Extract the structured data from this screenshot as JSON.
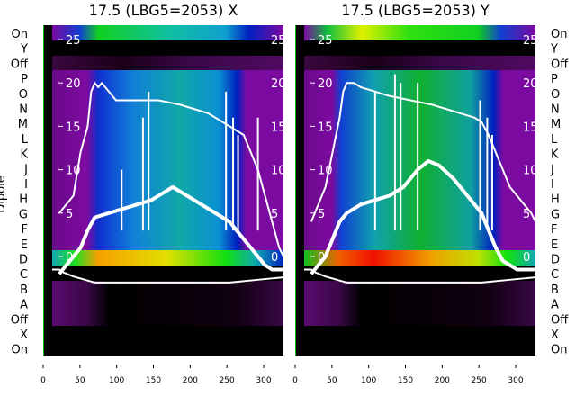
{
  "chart_data": [
    {
      "type": "heatmap",
      "title": "17.5 (LBG5=2053) X",
      "ylabel": "Dipole",
      "row_labels": [
        "On",
        "Y",
        "Off",
        "P",
        "O",
        "N",
        "M",
        "L",
        "K",
        "J",
        "I",
        "H",
        "G",
        "F",
        "E",
        "D",
        "C",
        "B",
        "A",
        "Off",
        "X",
        "On"
      ],
      "xticks": [
        0,
        50,
        100,
        150,
        200,
        250,
        300
      ],
      "xlim": [
        0,
        326
      ],
      "inner_yticks": [
        0,
        5,
        10,
        15,
        20,
        25
      ],
      "inner_ylim": [
        -11.5,
        26.5
      ],
      "series": [
        {
          "name": "upper",
          "x": [
            10,
            20,
            30,
            40,
            50,
            55,
            60,
            65,
            70,
            80,
            90,
            100,
            120,
            150,
            180,
            200,
            220,
            240,
            250,
            260,
            270,
            280,
            290,
            300,
            310,
            320,
            326
          ],
          "y": [
            5,
            6,
            7,
            12,
            15,
            19,
            20,
            19.5,
            20,
            19,
            18,
            18,
            18,
            18,
            17.5,
            17,
            16.5,
            15.5,
            15,
            14.5,
            14,
            12,
            10,
            7,
            4,
            1,
            0
          ]
        },
        {
          "name": "lower",
          "x": [
            10,
            20,
            30,
            40,
            50,
            60,
            80,
            100,
            120,
            140,
            160,
            170,
            180,
            200,
            220,
            240,
            250,
            260,
            270,
            280,
            290,
            300,
            310,
            326
          ],
          "y": [
            -2,
            -1,
            0,
            1,
            3,
            4.5,
            5,
            5.5,
            6,
            6.5,
            7.5,
            8,
            7.5,
            6.5,
            5.5,
            4.5,
            4,
            3,
            2,
            1,
            0,
            -1,
            -1.5,
            -1.5
          ]
        },
        {
          "name": "baseline",
          "x": [
            0,
            10,
            15,
            30,
            60,
            100,
            200,
            250,
            300,
            326
          ],
          "y": [
            -1.5,
            -1.5,
            -1.8,
            -2.3,
            -3,
            -3,
            -3,
            -3,
            -2.6,
            -2.4
          ]
        }
      ],
      "spikes": [
        {
          "x": 98,
          "top": 10
        },
        {
          "x": 128,
          "top": 16
        },
        {
          "x": 136,
          "top": 19
        },
        {
          "x": 245,
          "top": 19
        },
        {
          "x": 255,
          "top": 16
        },
        {
          "x": 262,
          "top": 14
        },
        {
          "x": 290,
          "top": 16
        }
      ]
    },
    {
      "type": "heatmap",
      "title": "17.5 (LBG5=2053) Y",
      "row_labels": [
        "On",
        "Y",
        "Off",
        "P",
        "O",
        "N",
        "M",
        "L",
        "K",
        "J",
        "I",
        "H",
        "G",
        "F",
        "E",
        "D",
        "C",
        "B",
        "A",
        "Off",
        "X",
        "On"
      ],
      "xticks": [
        0,
        50,
        100,
        150,
        200,
        250,
        300
      ],
      "xlim": [
        0,
        326
      ],
      "inner_yticks": [
        0,
        5,
        10,
        15,
        20,
        25
      ],
      "inner_ylim": [
        -11.5,
        26.5
      ],
      "series": [
        {
          "name": "upper",
          "x": [
            10,
            20,
            30,
            40,
            50,
            55,
            60,
            70,
            80,
            100,
            120,
            150,
            180,
            200,
            220,
            240,
            250,
            260,
            270,
            280,
            290,
            300,
            310,
            320,
            326
          ],
          "y": [
            4,
            6,
            8,
            12,
            16,
            19,
            20,
            20,
            19.5,
            19,
            18.5,
            18,
            17.5,
            17,
            16.5,
            16,
            15.5,
            14,
            12,
            10,
            8,
            7,
            6,
            5,
            4
          ]
        },
        {
          "name": "lower",
          "x": [
            10,
            20,
            30,
            40,
            50,
            60,
            80,
            100,
            120,
            140,
            160,
            175,
            190,
            210,
            230,
            250,
            260,
            270,
            280,
            290,
            300,
            326
          ],
          "y": [
            -2,
            -1,
            0,
            2,
            4,
            5,
            6,
            6.5,
            7,
            8,
            10,
            11,
            10.5,
            9,
            7,
            5,
            3,
            1,
            -0.5,
            -1,
            -1.5,
            -1.5
          ]
        },
        {
          "name": "baseline",
          "x": [
            0,
            10,
            15,
            30,
            60,
            100,
            200,
            250,
            300,
            326
          ],
          "y": [
            -1.5,
            -1.5,
            -1.8,
            -2.3,
            -3,
            -3,
            -3,
            -3,
            -2.6,
            -2.4
          ]
        }
      ],
      "spikes": [
        {
          "x": 100,
          "top": 19
        },
        {
          "x": 128,
          "top": 21
        },
        {
          "x": 136,
          "top": 20
        },
        {
          "x": 160,
          "top": 20
        },
        {
          "x": 248,
          "top": 18
        },
        {
          "x": 258,
          "top": 16
        },
        {
          "x": 265,
          "top": 14
        }
      ]
    }
  ]
}
